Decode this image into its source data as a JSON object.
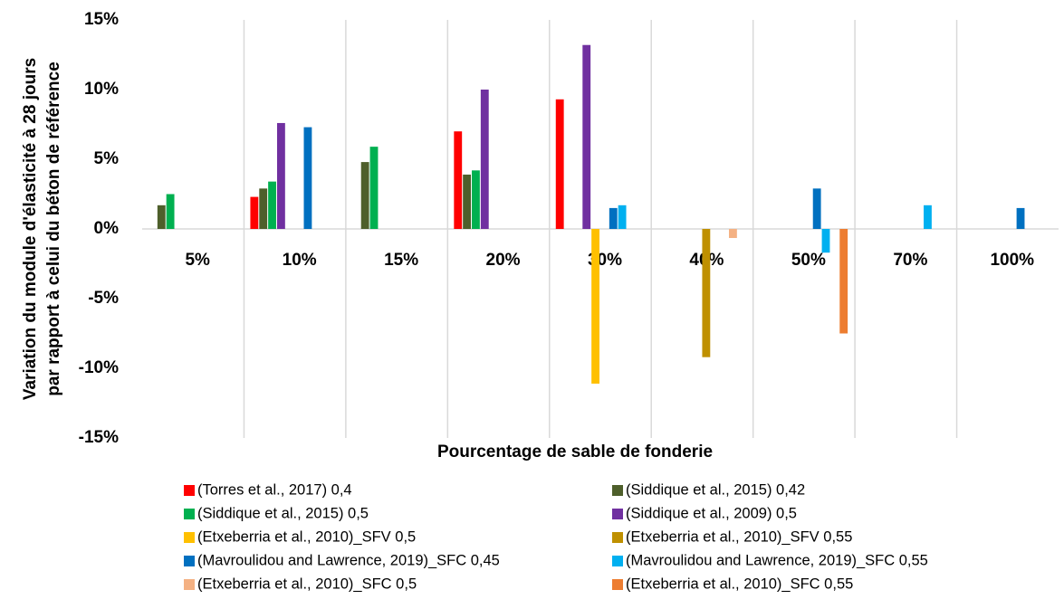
{
  "chart_data": {
    "type": "bar",
    "x_label": "Pourcentage de sable de fonderie",
    "y_label": [
      "Variation du module d'élasticité à 28 jours",
      "par rapport à celui du béton de référence"
    ],
    "categories": [
      "5%",
      "10%",
      "15%",
      "20%",
      "30%",
      "40%",
      "50%",
      "70%",
      "100%"
    ],
    "series": [
      {
        "name": "(Torres et al., 2017) 0,4",
        "color": "#ff0000",
        "values": [
          null,
          2.3,
          null,
          7.0,
          9.3,
          null,
          null,
          null,
          null
        ]
      },
      {
        "name": "(Siddique et al., 2015) 0,42",
        "color": "#4e5f2b",
        "values": [
          1.7,
          2.9,
          4.8,
          3.9,
          null,
          null,
          null,
          null,
          null
        ]
      },
      {
        "name": "(Siddique et al., 2015) 0,5",
        "color": "#00b050",
        "values": [
          2.5,
          3.4,
          5.9,
          4.2,
          null,
          null,
          null,
          null,
          null
        ]
      },
      {
        "name": "(Siddique et al., 2009) 0,5",
        "color": "#7030a0",
        "values": [
          null,
          7.6,
          null,
          10.0,
          13.2,
          null,
          null,
          null,
          null
        ]
      },
      {
        "name": "(Etxeberria et al., 2010)_SFV  0,5",
        "color": "#ffc000",
        "values": [
          null,
          null,
          null,
          null,
          -11.1,
          null,
          null,
          null,
          null
        ]
      },
      {
        "name": "(Etxeberria et al., 2010)_SFV  0,55",
        "color": "#bf9000",
        "values": [
          null,
          null,
          null,
          null,
          null,
          -9.2,
          null,
          null,
          null
        ]
      },
      {
        "name": "(Mavroulidou and Lawrence, 2019)_SFC 0,45",
        "color": "#0070c0",
        "values": [
          null,
          7.3,
          null,
          null,
          1.5,
          null,
          2.9,
          null,
          1.5
        ]
      },
      {
        "name": "(Mavroulidou and Lawrence, 2019)_SFC 0,55",
        "color": "#00b0f0",
        "values": [
          null,
          null,
          null,
          null,
          1.7,
          null,
          -1.7,
          1.7,
          null
        ]
      },
      {
        "name": "(Etxeberria et al., 2010)_SFC 0,5",
        "color": "#f4b183",
        "values": [
          null,
          null,
          null,
          null,
          null,
          -0.65,
          null,
          null,
          null
        ]
      },
      {
        "name": "(Etxeberria et al., 2010)_SFC 0,55",
        "color": "#ed7d31",
        "values": [
          null,
          null,
          null,
          null,
          null,
          null,
          -7.5,
          null,
          null
        ]
      }
    ],
    "ylim": [
      -15,
      15
    ],
    "yticks": [
      {
        "value": -15,
        "label": "-15%"
      },
      {
        "value": -10,
        "label": "-10%"
      },
      {
        "value": -5,
        "label": "-5%"
      },
      {
        "value": 0,
        "label": "0%"
      },
      {
        "value": 5,
        "label": "5%"
      },
      {
        "value": 10,
        "label": "10%"
      },
      {
        "value": 15,
        "label": "15%"
      }
    ],
    "grid": true,
    "legend": "bottom"
  }
}
